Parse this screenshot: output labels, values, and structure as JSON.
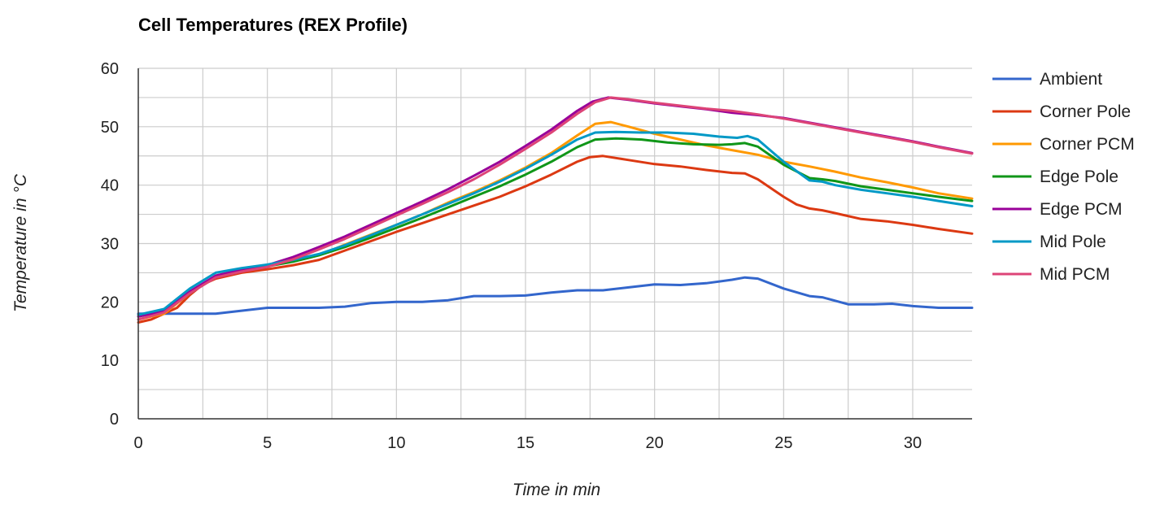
{
  "chart_data": {
    "type": "line",
    "title": "Cell Temperatures (REX Profile)",
    "xlabel": "Time in min",
    "ylabel": "Temperature in °C",
    "xlim": [
      0,
      32.3
    ],
    "ylim": [
      0,
      60
    ],
    "xticks": [
      0,
      5,
      10,
      15,
      20,
      25,
      30
    ],
    "yticks": [
      0,
      10,
      20,
      30,
      40,
      50,
      60
    ],
    "grid": true,
    "legend": "right",
    "series": [
      {
        "name": "Ambient",
        "color": "#3366cc",
        "points": [
          [
            0,
            18
          ],
          [
            1,
            18
          ],
          [
            2,
            18
          ],
          [
            3,
            18
          ],
          [
            4,
            18.5
          ],
          [
            5,
            19
          ],
          [
            6,
            19
          ],
          [
            7,
            19
          ],
          [
            8,
            19.2
          ],
          [
            9,
            19.8
          ],
          [
            10,
            20
          ],
          [
            11,
            20
          ],
          [
            12,
            20.3
          ],
          [
            13,
            21
          ],
          [
            14,
            21
          ],
          [
            15,
            21.1
          ],
          [
            16,
            21.6
          ],
          [
            17,
            22
          ],
          [
            18,
            22
          ],
          [
            19,
            22.5
          ],
          [
            20,
            23
          ],
          [
            21,
            22.9
          ],
          [
            22,
            23.2
          ],
          [
            23,
            23.8
          ],
          [
            23.5,
            24.2
          ],
          [
            24,
            24
          ],
          [
            25,
            22.3
          ],
          [
            26,
            21
          ],
          [
            26.5,
            20.8
          ],
          [
            27.5,
            19.6
          ],
          [
            28.5,
            19.6
          ],
          [
            29.2,
            19.7
          ],
          [
            30,
            19.3
          ],
          [
            31,
            19
          ],
          [
            32.3,
            19
          ]
        ]
      },
      {
        "name": "Corner Pole",
        "color": "#dc3912",
        "points": [
          [
            0,
            16.5
          ],
          [
            0.5,
            17
          ],
          [
            1.5,
            19
          ],
          [
            2,
            21.2
          ],
          [
            2.5,
            23
          ],
          [
            3,
            24
          ],
          [
            4,
            25
          ],
          [
            5,
            25.6
          ],
          [
            6,
            26.3
          ],
          [
            7,
            27.2
          ],
          [
            8,
            28.8
          ],
          [
            9,
            30.4
          ],
          [
            10,
            32
          ],
          [
            11,
            33.5
          ],
          [
            12,
            35
          ],
          [
            13,
            36.5
          ],
          [
            14,
            38
          ],
          [
            15,
            39.8
          ],
          [
            16,
            41.8
          ],
          [
            17,
            44
          ],
          [
            17.5,
            44.8
          ],
          [
            18,
            45
          ],
          [
            19,
            44.3
          ],
          [
            20,
            43.6
          ],
          [
            21,
            43.2
          ],
          [
            22,
            42.6
          ],
          [
            23,
            42.1
          ],
          [
            23.5,
            42
          ],
          [
            24,
            41
          ],
          [
            25,
            38
          ],
          [
            25.5,
            36.7
          ],
          [
            26,
            36
          ],
          [
            26.5,
            35.7
          ],
          [
            27,
            35.2
          ],
          [
            28,
            34.2
          ],
          [
            29,
            33.8
          ],
          [
            30,
            33.2
          ],
          [
            31,
            32.5
          ],
          [
            32.3,
            31.7
          ]
        ]
      },
      {
        "name": "Corner PCM",
        "color": "#ff9900",
        "points": [
          [
            0,
            17
          ],
          [
            1,
            18
          ],
          [
            2,
            21.5
          ],
          [
            3,
            24.5
          ],
          [
            4,
            25.5
          ],
          [
            5,
            26.2
          ],
          [
            6,
            27
          ],
          [
            7,
            28
          ],
          [
            8,
            29.8
          ],
          [
            9,
            31.5
          ],
          [
            10,
            33.2
          ],
          [
            11,
            35
          ],
          [
            12,
            37
          ],
          [
            13,
            38.8
          ],
          [
            14,
            40.8
          ],
          [
            15,
            43
          ],
          [
            16,
            45.5
          ],
          [
            17,
            48.5
          ],
          [
            17.7,
            50.5
          ],
          [
            18.3,
            50.8
          ],
          [
            19,
            50
          ],
          [
            20,
            48.8
          ],
          [
            21,
            47.8
          ],
          [
            22,
            46.8
          ],
          [
            23,
            46
          ],
          [
            24,
            45.2
          ],
          [
            25,
            44
          ],
          [
            26,
            43.2
          ],
          [
            27,
            42.3
          ],
          [
            28,
            41.3
          ],
          [
            29,
            40.5
          ],
          [
            30,
            39.6
          ],
          [
            31,
            38.6
          ],
          [
            32.3,
            37.7
          ]
        ]
      },
      {
        "name": "Edge Pole",
        "color": "#109618",
        "points": [
          [
            0,
            17.5
          ],
          [
            1,
            18.5
          ],
          [
            2,
            21.5
          ],
          [
            3,
            24.3
          ],
          [
            4,
            25.4
          ],
          [
            5,
            26.1
          ],
          [
            6,
            26.9
          ],
          [
            7,
            28
          ],
          [
            8,
            29.4
          ],
          [
            9,
            31
          ],
          [
            10,
            32.7
          ],
          [
            11,
            34.4
          ],
          [
            12,
            36.2
          ],
          [
            13,
            38
          ],
          [
            14,
            39.8
          ],
          [
            15,
            41.8
          ],
          [
            16,
            44
          ],
          [
            17,
            46.5
          ],
          [
            17.7,
            47.8
          ],
          [
            18.5,
            48
          ],
          [
            19.5,
            47.8
          ],
          [
            20.5,
            47.3
          ],
          [
            21.5,
            47
          ],
          [
            22.5,
            46.9
          ],
          [
            23,
            47
          ],
          [
            23.5,
            47.2
          ],
          [
            24,
            46.6
          ],
          [
            25,
            43.5
          ],
          [
            26,
            41.2
          ],
          [
            26.5,
            41
          ],
          [
            27,
            40.7
          ],
          [
            28,
            39.8
          ],
          [
            29,
            39.2
          ],
          [
            30,
            38.6
          ],
          [
            31,
            38
          ],
          [
            32.3,
            37.3
          ]
        ]
      },
      {
        "name": "Edge PCM",
        "color": "#990099",
        "points": [
          [
            0,
            17.5
          ],
          [
            1,
            18.5
          ],
          [
            2,
            21.8
          ],
          [
            3,
            24.5
          ],
          [
            4,
            25.5
          ],
          [
            5,
            26.3
          ],
          [
            6,
            27.7
          ],
          [
            7,
            29.4
          ],
          [
            8,
            31.2
          ],
          [
            9,
            33.2
          ],
          [
            10,
            35.2
          ],
          [
            11,
            37.2
          ],
          [
            12,
            39.3
          ],
          [
            13,
            41.6
          ],
          [
            14,
            44
          ],
          [
            15,
            46.7
          ],
          [
            16,
            49.5
          ],
          [
            17,
            52.7
          ],
          [
            17.6,
            54.3
          ],
          [
            18.2,
            55
          ],
          [
            19,
            54.6
          ],
          [
            20,
            54
          ],
          [
            21,
            53.5
          ],
          [
            22,
            53
          ],
          [
            23,
            52.4
          ],
          [
            24,
            52
          ],
          [
            25,
            51.5
          ],
          [
            26,
            50.7
          ],
          [
            27,
            49.9
          ],
          [
            28,
            49.1
          ],
          [
            29,
            48.3
          ],
          [
            30,
            47.5
          ],
          [
            31,
            46.6
          ],
          [
            32.3,
            45.5
          ]
        ]
      },
      {
        "name": "Mid Pole",
        "color": "#0099c6",
        "points": [
          [
            0,
            17.8
          ],
          [
            1,
            18.8
          ],
          [
            2,
            22.3
          ],
          [
            3,
            25
          ],
          [
            4,
            25.8
          ],
          [
            5,
            26.4
          ],
          [
            6,
            27.2
          ],
          [
            7,
            28.2
          ],
          [
            8,
            29.7
          ],
          [
            9,
            31.4
          ],
          [
            10,
            33.2
          ],
          [
            11,
            35
          ],
          [
            12,
            36.8
          ],
          [
            13,
            38.6
          ],
          [
            14,
            40.6
          ],
          [
            15,
            42.8
          ],
          [
            16,
            45.2
          ],
          [
            17,
            47.8
          ],
          [
            17.7,
            49
          ],
          [
            18.5,
            49.1
          ],
          [
            19.5,
            49
          ],
          [
            20.5,
            49
          ],
          [
            21.5,
            48.8
          ],
          [
            22.5,
            48.3
          ],
          [
            23.2,
            48.1
          ],
          [
            23.6,
            48.4
          ],
          [
            24,
            47.8
          ],
          [
            25,
            44
          ],
          [
            26,
            40.8
          ],
          [
            26.5,
            40.6
          ],
          [
            27,
            40
          ],
          [
            28,
            39.2
          ],
          [
            29,
            38.6
          ],
          [
            30,
            38
          ],
          [
            31,
            37.3
          ],
          [
            32.3,
            36.4
          ]
        ]
      },
      {
        "name": "Mid PCM",
        "color": "#dd4477",
        "points": [
          [
            0,
            17
          ],
          [
            1,
            18.2
          ],
          [
            2,
            21.5
          ],
          [
            3,
            24.2
          ],
          [
            4,
            25.2
          ],
          [
            5,
            26
          ],
          [
            6,
            27.3
          ],
          [
            7,
            29
          ],
          [
            8,
            30.8
          ],
          [
            9,
            32.8
          ],
          [
            10,
            34.8
          ],
          [
            11,
            36.8
          ],
          [
            12,
            38.8
          ],
          [
            13,
            41
          ],
          [
            14,
            43.5
          ],
          [
            15,
            46.2
          ],
          [
            16,
            49
          ],
          [
            17,
            52.2
          ],
          [
            17.7,
            54.2
          ],
          [
            18.3,
            55
          ],
          [
            19,
            54.7
          ],
          [
            20,
            54.1
          ],
          [
            21,
            53.6
          ],
          [
            22,
            53.1
          ],
          [
            23,
            52.7
          ],
          [
            24,
            52.1
          ],
          [
            25,
            51.4
          ],
          [
            26,
            50.6
          ],
          [
            27,
            49.8
          ],
          [
            28,
            49
          ],
          [
            29,
            48.2
          ],
          [
            30,
            47.4
          ],
          [
            31,
            46.5
          ],
          [
            32.3,
            45.4
          ]
        ]
      }
    ]
  }
}
